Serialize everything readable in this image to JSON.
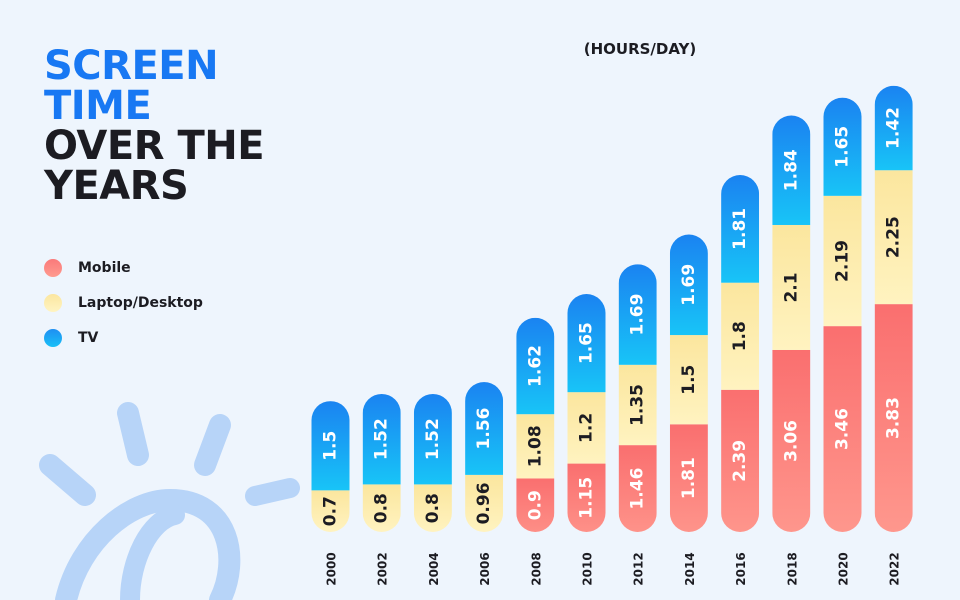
{
  "title": {
    "line1": "SCREEN",
    "line2": "TIME",
    "line3": "OVER THE",
    "line4": "YEARS"
  },
  "subtitle": "(HOURS/DAY)",
  "legend": [
    {
      "label": "Mobile"
    },
    {
      "label": "Laptop/Desktop"
    },
    {
      "label": "TV"
    }
  ],
  "colors": {
    "mobile": "#fb7676",
    "laptop": "#fbe9a6",
    "tv": "#1f8ff2",
    "title_blue": "#1878f3",
    "text_dark": "#1c1c22",
    "decor": "#b7d4f8"
  },
  "chart_data": {
    "type": "bar",
    "stacked": true,
    "title": "SCREEN TIME OVER THE YEARS",
    "ylabel": "(HOURS/DAY)",
    "categories": [
      "2000",
      "2002",
      "2004",
      "2006",
      "2008",
      "2010",
      "2012",
      "2014",
      "2016",
      "2018",
      "2020",
      "2022"
    ],
    "series": [
      {
        "name": "Mobile",
        "values": [
          0,
          0,
          0,
          0,
          0.9,
          1.15,
          1.46,
          1.81,
          2.39,
          3.06,
          3.46,
          3.83
        ]
      },
      {
        "name": "Laptop/Desktop",
        "values": [
          0.7,
          0.8,
          0.8,
          0.96,
          1.08,
          1.2,
          1.35,
          1.5,
          1.8,
          2.1,
          2.19,
          2.25
        ]
      },
      {
        "name": "TV",
        "values": [
          1.5,
          1.52,
          1.52,
          1.56,
          1.62,
          1.65,
          1.69,
          1.69,
          1.81,
          1.84,
          1.65,
          1.42
        ]
      }
    ]
  }
}
